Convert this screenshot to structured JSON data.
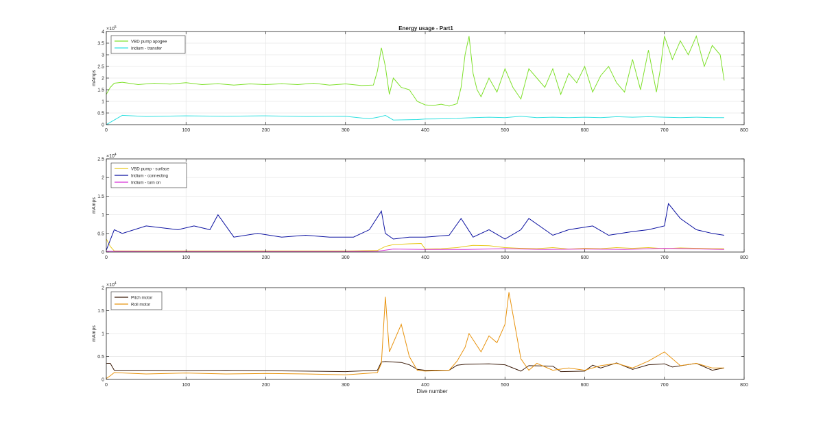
{
  "figure_title": "Energy usage - Part1",
  "chart_data": [
    {
      "type": "line",
      "title": "Energy usage - Part1",
      "xlabel": "",
      "ylabel": "mAmps",
      "xlim": [
        0,
        800
      ],
      "ylim": [
        0,
        400000
      ],
      "x_ticks": [
        "0",
        "100",
        "200",
        "300",
        "400",
        "500",
        "600",
        "700",
        "800"
      ],
      "y_ticks": [
        "0",
        "0.5",
        "1",
        "1.5",
        "2",
        "2.5",
        "3",
        "3.5",
        "4"
      ],
      "y_multiplier": "×10",
      "y_exponent": "5",
      "grid": true,
      "legend": "top-left",
      "series": [
        {
          "name": "VBD pump apogee",
          "color": "#7ee02a",
          "x": [
            0,
            5,
            10,
            20,
            40,
            60,
            80,
            100,
            120,
            140,
            160,
            180,
            200,
            220,
            240,
            260,
            280,
            300,
            320,
            335,
            340,
            345,
            350,
            355,
            360,
            370,
            380,
            390,
            400,
            410,
            420,
            430,
            440,
            445,
            450,
            455,
            460,
            465,
            470,
            480,
            490,
            500,
            510,
            520,
            530,
            540,
            550,
            560,
            570,
            580,
            590,
            600,
            610,
            620,
            630,
            640,
            650,
            660,
            670,
            680,
            690,
            695,
            700,
            710,
            720,
            730,
            740,
            750,
            760,
            770,
            775
          ],
          "values": [
            130000,
            160000,
            178000,
            182000,
            172000,
            178000,
            174000,
            180000,
            172000,
            176000,
            170000,
            175000,
            172000,
            176000,
            172000,
            178000,
            170000,
            175000,
            168000,
            170000,
            230000,
            330000,
            250000,
            130000,
            200000,
            160000,
            150000,
            100000,
            85000,
            82000,
            88000,
            80000,
            90000,
            160000,
            300000,
            380000,
            220000,
            150000,
            120000,
            200000,
            140000,
            240000,
            160000,
            110000,
            240000,
            200000,
            160000,
            240000,
            130000,
            220000,
            180000,
            250000,
            140000,
            210000,
            250000,
            180000,
            140000,
            280000,
            150000,
            320000,
            140000,
            240000,
            380000,
            280000,
            360000,
            300000,
            380000,
            250000,
            340000,
            300000,
            190000
          ]
        },
        {
          "name": "Iridium - transfer",
          "color": "#2fe0e0",
          "x": [
            0,
            20,
            50,
            100,
            150,
            200,
            250,
            300,
            330,
            345,
            350,
            360,
            390,
            400,
            420,
            440,
            445,
            460,
            480,
            500,
            520,
            540,
            560,
            580,
            600,
            620,
            640,
            660,
            680,
            700,
            720,
            740,
            760,
            775
          ],
          "values": [
            0,
            40000,
            35000,
            38000,
            36000,
            38000,
            35000,
            36000,
            25000,
            35000,
            40000,
            20000,
            22000,
            24000,
            25000,
            26000,
            28000,
            30000,
            32000,
            30000,
            36000,
            30000,
            32000,
            30000,
            32000,
            30000,
            34000,
            32000,
            34000,
            32000,
            30000,
            32000,
            30000,
            30000
          ]
        }
      ]
    },
    {
      "type": "line",
      "title": "",
      "xlabel": "",
      "ylabel": "mAmps",
      "xlim": [
        0,
        800
      ],
      "ylim": [
        0,
        25000
      ],
      "x_ticks": [
        "0",
        "100",
        "200",
        "300",
        "400",
        "500",
        "600",
        "700",
        "800"
      ],
      "y_ticks": [
        "0",
        "0.5",
        "1",
        "1.5",
        "2",
        "2.5"
      ],
      "y_multiplier": "×10",
      "y_exponent": "4",
      "grid": true,
      "legend": "top-left",
      "series": [
        {
          "name": "VBD pump - surface",
          "color": "#e8c81a",
          "x": [
            0,
            5,
            10,
            50,
            100,
            150,
            200,
            250,
            300,
            340,
            350,
            360,
            380,
            395,
            400,
            420,
            440,
            450,
            460,
            480,
            500,
            520,
            540,
            560,
            580,
            600,
            620,
            640,
            660,
            680,
            700,
            720,
            740,
            760,
            775
          ],
          "values": [
            3500,
            1500,
            300,
            300,
            300,
            300,
            300,
            300,
            300,
            400,
            1500,
            2000,
            2200,
            2300,
            800,
            900,
            1200,
            1500,
            1800,
            1700,
            1200,
            1000,
            900,
            1200,
            800,
            1000,
            900,
            1200,
            1000,
            1200,
            900,
            1100,
            1000,
            900,
            900
          ]
        },
        {
          "name": "Iridium - connecting",
          "color": "#0a10a0",
          "x": [
            0,
            10,
            20,
            50,
            90,
            110,
            130,
            140,
            160,
            190,
            220,
            250,
            280,
            310,
            330,
            345,
            350,
            360,
            380,
            400,
            430,
            445,
            460,
            480,
            500,
            520,
            530,
            560,
            580,
            610,
            630,
            660,
            680,
            700,
            705,
            720,
            740,
            760,
            775
          ],
          "values": [
            500,
            6000,
            5000,
            7000,
            6000,
            7000,
            6000,
            10000,
            4000,
            5000,
            4000,
            4500,
            4000,
            4000,
            6000,
            11000,
            5000,
            3500,
            4000,
            4000,
            4500,
            9000,
            4000,
            6000,
            3500,
            6000,
            9000,
            4500,
            6000,
            7000,
            4500,
            5500,
            6000,
            7000,
            13000,
            9000,
            6000,
            5000,
            4500
          ]
        },
        {
          "name": "Iridium - turn on",
          "color": "#d633d6",
          "x": [
            0,
            50,
            100,
            200,
            300,
            340,
            360,
            400,
            450,
            500,
            550,
            600,
            650,
            700,
            750,
            775
          ],
          "values": [
            200,
            150,
            150,
            150,
            150,
            200,
            800,
            700,
            700,
            900,
            700,
            800,
            700,
            1000,
            800,
            700
          ]
        }
      ]
    },
    {
      "type": "line",
      "title": "",
      "xlabel": "Dive number",
      "ylabel": "mAmps",
      "xlim": [
        0,
        800
      ],
      "ylim": [
        0,
        20000
      ],
      "x_ticks": [
        "0",
        "100",
        "200",
        "300",
        "400",
        "500",
        "600",
        "700",
        "800"
      ],
      "y_ticks": [
        "0",
        "0.5",
        "1",
        "1.5",
        "2"
      ],
      "y_multiplier": "×10",
      "y_exponent": "4",
      "grid": true,
      "legend": "top-left",
      "series": [
        {
          "name": "Pitch motor",
          "color": "#3a1a08",
          "x": [
            0,
            5,
            10,
            50,
            100,
            150,
            200,
            250,
            300,
            340,
            345,
            350,
            370,
            380,
            390,
            400,
            430,
            440,
            450,
            480,
            500,
            520,
            530,
            560,
            570,
            600,
            610,
            620,
            640,
            660,
            680,
            700,
            710,
            740,
            760,
            775
          ],
          "values": [
            3500,
            3500,
            2000,
            2000,
            1900,
            2000,
            1900,
            1800,
            1700,
            2000,
            3800,
            3900,
            3700,
            3200,
            2200,
            2000,
            2000,
            3100,
            3300,
            3400,
            3200,
            1800,
            3000,
            2900,
            1700,
            1800,
            3100,
            2500,
            3600,
            2200,
            3200,
            3400,
            2700,
            3500,
            2000,
            2500
          ]
        },
        {
          "name": "Roll motor",
          "color": "#e8920c",
          "x": [
            0,
            5,
            10,
            50,
            100,
            150,
            200,
            250,
            300,
            340,
            345,
            350,
            355,
            370,
            380,
            390,
            400,
            430,
            440,
            450,
            455,
            470,
            480,
            490,
            500,
            505,
            520,
            530,
            540,
            560,
            580,
            600,
            620,
            640,
            660,
            680,
            700,
            720,
            740,
            760,
            775
          ],
          "values": [
            200,
            800,
            1500,
            1200,
            1400,
            1200,
            1300,
            1200,
            1000,
            1500,
            3500,
            18000,
            6000,
            12000,
            5000,
            2000,
            1800,
            2000,
            4000,
            7000,
            10000,
            6000,
            9500,
            8000,
            12000,
            19000,
            4500,
            2000,
            3500,
            2000,
            2500,
            2000,
            3000,
            3500,
            2500,
            4000,
            6000,
            3000,
            3500,
            2500,
            2500
          ]
        }
      ]
    }
  ]
}
